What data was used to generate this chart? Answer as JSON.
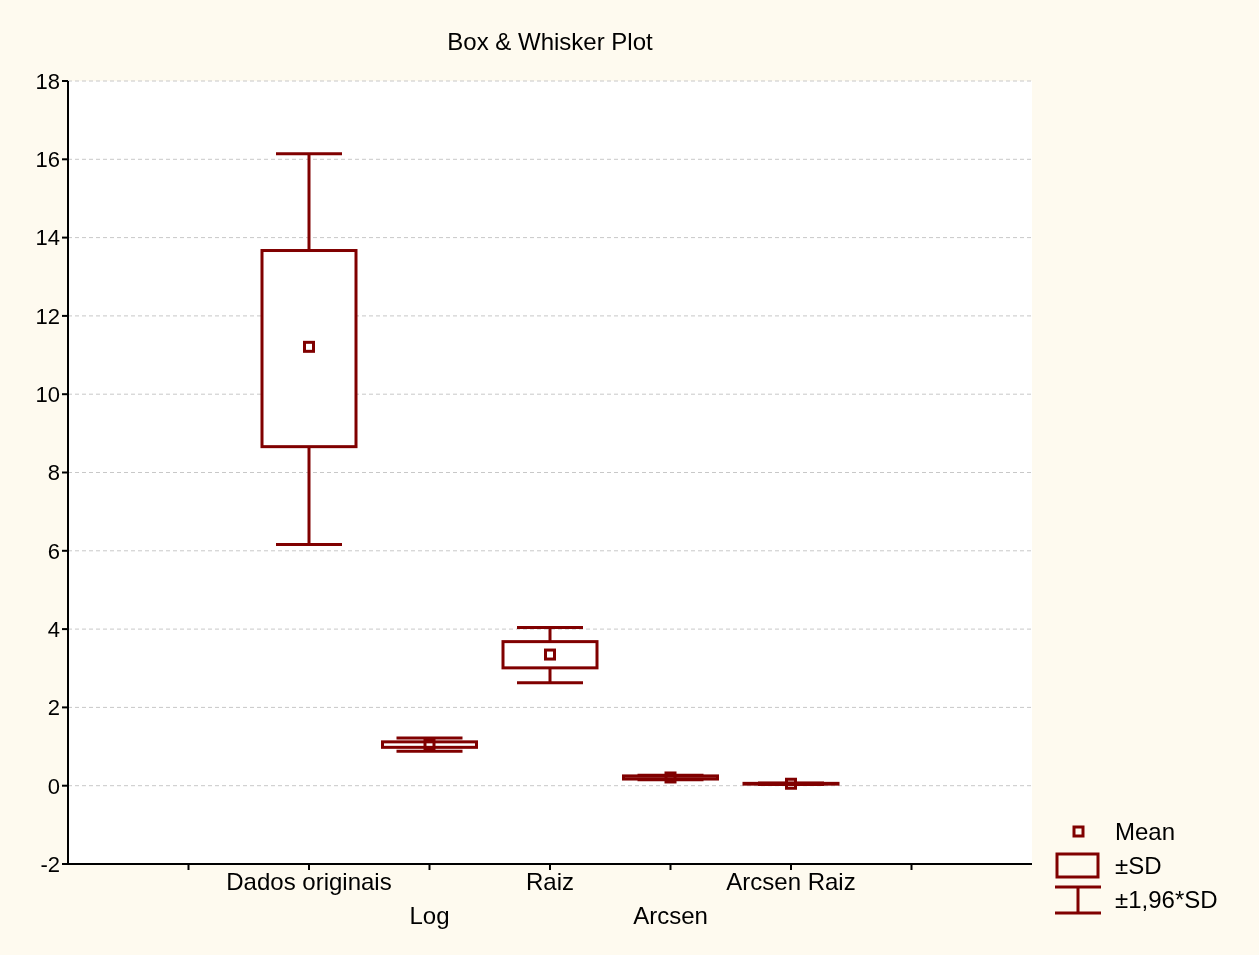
{
  "chart_data": {
    "type": "box",
    "title": "Box & Whisker Plot",
    "categories": [
      null,
      "Dados originais",
      "Log",
      "Raiz",
      "Arcsen",
      "Arcsen Raiz",
      null
    ],
    "color": "#800000",
    "boxes": [
      null,
      {
        "low": 6.16,
        "q1": 8.66,
        "q3": 13.67,
        "high": 16.14,
        "mean": 11.21
      },
      {
        "low": 0.88,
        "q1": 0.98,
        "q3": 1.12,
        "high": 1.22,
        "mean": 1.05
      },
      {
        "low": 2.63,
        "q1": 3.01,
        "q3": 3.68,
        "high": 4.04,
        "mean": 3.35
      },
      {
        "low": 0.15,
        "q1": 0.17,
        "q3": 0.25,
        "high": 0.27,
        "mean": 0.21
      },
      {
        "low": 0.03,
        "q1": 0.04,
        "q3": 0.06,
        "high": 0.07,
        "mean": 0.05
      },
      null
    ],
    "ylim": [
      -2,
      18
    ],
    "yticks": [
      -2,
      0,
      2,
      4,
      6,
      8,
      10,
      12,
      14,
      16,
      18
    ],
    "grid": "y",
    "annotations": [
      "Mean",
      "±SD",
      "±1,96*SD"
    ]
  }
}
